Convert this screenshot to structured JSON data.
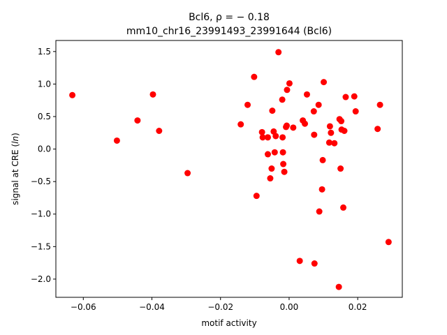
{
  "chart_data": {
    "type": "scatter",
    "title_line1": "Bcl6, ρ = − 0.18",
    "title_line2": "mm10_chr16_23991493_23991644 (Bcl6)",
    "xlabel": "motif activity",
    "ylabel_prefix": "signal at CRE (",
    "ylabel_math": "ln",
    "ylabel_suffix": ")",
    "xlim": [
      -0.068,
      0.033
    ],
    "ylim": [
      -2.28,
      1.67
    ],
    "x_ticks": [
      {
        "value": -0.06,
        "label": "−0.06"
      },
      {
        "value": -0.04,
        "label": "−0.04"
      },
      {
        "value": -0.02,
        "label": "−0.02"
      },
      {
        "value": 0.0,
        "label": "0.00"
      },
      {
        "value": 0.02,
        "label": "0.02"
      }
    ],
    "y_ticks": [
      {
        "value": 1.5,
        "label": "1.5"
      },
      {
        "value": 1.0,
        "label": "1.0"
      },
      {
        "value": 0.5,
        "label": "0.5"
      },
      {
        "value": 0.0,
        "label": "0.0"
      },
      {
        "value": -0.5,
        "label": "−0.5"
      },
      {
        "value": -1.0,
        "label": "−1.0"
      },
      {
        "value": -1.5,
        "label": "−1.5"
      },
      {
        "value": -2.0,
        "label": "−2.0"
      }
    ],
    "grid": false,
    "marker_color": "#ff0000",
    "points": [
      {
        "x": -0.0632,
        "y": 0.83
      },
      {
        "x": -0.0502,
        "y": 0.13
      },
      {
        "x": -0.0442,
        "y": 0.44
      },
      {
        "x": -0.0397,
        "y": 0.84
      },
      {
        "x": -0.0379,
        "y": 0.28
      },
      {
        "x": -0.0296,
        "y": -0.37
      },
      {
        "x": -0.0141,
        "y": 0.38
      },
      {
        "x": -0.0121,
        "y": 0.68
      },
      {
        "x": -0.0102,
        "y": 1.11
      },
      {
        "x": -0.0095,
        "y": -0.72
      },
      {
        "x": -0.0079,
        "y": 0.26
      },
      {
        "x": -0.0077,
        "y": 0.18
      },
      {
        "x": -0.0062,
        "y": 0.18
      },
      {
        "x": -0.0062,
        "y": -0.08
      },
      {
        "x": -0.0055,
        "y": -0.45
      },
      {
        "x": -0.0051,
        "y": -0.3
      },
      {
        "x": -0.0049,
        "y": 0.59
      },
      {
        "x": -0.0045,
        "y": 0.27
      },
      {
        "x": -0.0042,
        "y": -0.05
      },
      {
        "x": -0.0039,
        "y": 0.2
      },
      {
        "x": -0.0031,
        "y": 1.49
      },
      {
        "x": -0.002,
        "y": 0.76
      },
      {
        "x": -0.0019,
        "y": 0.18
      },
      {
        "x": -0.0018,
        "y": -0.05
      },
      {
        "x": -0.0017,
        "y": -0.23
      },
      {
        "x": -0.0014,
        "y": -0.35
      },
      {
        "x": -0.0009,
        "y": 0.34
      },
      {
        "x": -0.0007,
        "y": 0.36
      },
      {
        "x": -0.0006,
        "y": 0.91
      },
      {
        "x": 0.0001,
        "y": 1.01
      },
      {
        "x": 0.0012,
        "y": 0.33
      },
      {
        "x": 0.0031,
        "y": -1.72
      },
      {
        "x": 0.004,
        "y": 0.44
      },
      {
        "x": 0.0046,
        "y": 0.39
      },
      {
        "x": 0.0052,
        "y": 0.84
      },
      {
        "x": 0.0072,
        "y": 0.58
      },
      {
        "x": 0.0073,
        "y": 0.22
      },
      {
        "x": 0.0074,
        "y": -1.76
      },
      {
        "x": 0.0086,
        "y": 0.68
      },
      {
        "x": 0.0088,
        "y": -0.96
      },
      {
        "x": 0.0096,
        "y": -0.62
      },
      {
        "x": 0.0098,
        "y": -0.17
      },
      {
        "x": 0.0101,
        "y": 1.03
      },
      {
        "x": 0.0117,
        "y": 0.1
      },
      {
        "x": 0.0119,
        "y": 0.35
      },
      {
        "x": 0.0122,
        "y": 0.25
      },
      {
        "x": 0.0132,
        "y": 0.09
      },
      {
        "x": 0.0145,
        "y": -2.12
      },
      {
        "x": 0.0147,
        "y": 0.46
      },
      {
        "x": 0.015,
        "y": -0.3
      },
      {
        "x": 0.0152,
        "y": 0.43
      },
      {
        "x": 0.0153,
        "y": 0.3
      },
      {
        "x": 0.0158,
        "y": -0.9
      },
      {
        "x": 0.0161,
        "y": 0.28
      },
      {
        "x": 0.0165,
        "y": 0.8
      },
      {
        "x": 0.019,
        "y": 0.81
      },
      {
        "x": 0.0194,
        "y": 0.58
      },
      {
        "x": 0.0258,
        "y": 0.31
      },
      {
        "x": 0.0265,
        "y": 0.68
      },
      {
        "x": 0.029,
        "y": -1.43
      }
    ]
  }
}
